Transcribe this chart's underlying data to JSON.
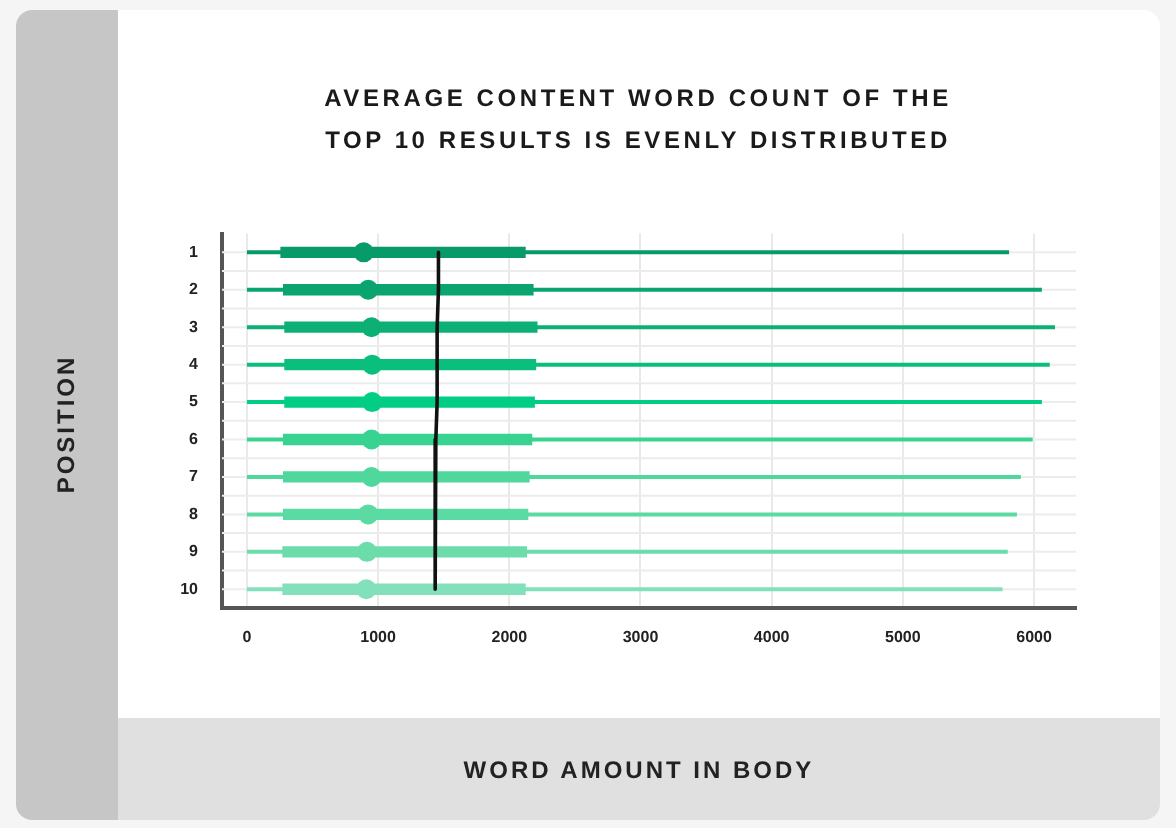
{
  "chart_data": {
    "type": "box",
    "orientation": "horizontal",
    "title": "AVERAGE CONTENT WORD COUNT OF THE TOP 10 RESULTS IS EVENLY DISTRIBUTED",
    "xlabel": "WORD AMOUNT IN BODY",
    "ylabel": "POSITION",
    "categories": [
      "1",
      "2",
      "3",
      "4",
      "5",
      "6",
      "7",
      "8",
      "9",
      "10"
    ],
    "xlim": [
      -190,
      6320
    ],
    "xticks": [
      0,
      1000,
      2000,
      3000,
      4000,
      5000,
      6000
    ],
    "grid": true,
    "series": [
      {
        "type": "box",
        "colors": [
          "#089b6a",
          "#0aa56f",
          "#0cb074",
          "#09bf7b",
          "#02cd84",
          "#38d391",
          "#4fd79c",
          "#5cdaa4",
          "#6cdcab",
          "#82e0bb"
        ],
        "boxes": [
          {
            "low": 0,
            "q1": 260,
            "median": 890,
            "q3": 2120,
            "high": 5810
          },
          {
            "low": 0,
            "q1": 280,
            "median": 925,
            "q3": 2180,
            "high": 6060
          },
          {
            "low": 0,
            "q1": 290,
            "median": 950,
            "q3": 2210,
            "high": 6160
          },
          {
            "low": 0,
            "q1": 290,
            "median": 955,
            "q3": 2200,
            "high": 6120
          },
          {
            "low": 0,
            "q1": 290,
            "median": 955,
            "q3": 2190,
            "high": 6060
          },
          {
            "low": 0,
            "q1": 280,
            "median": 950,
            "q3": 2170,
            "high": 5990
          },
          {
            "low": 0,
            "q1": 280,
            "median": 950,
            "q3": 2150,
            "high": 5900
          },
          {
            "low": 0,
            "q1": 280,
            "median": 925,
            "q3": 2140,
            "high": 5870
          },
          {
            "low": 0,
            "q1": 275,
            "median": 915,
            "q3": 2130,
            "high": 5800
          },
          {
            "low": 0,
            "q1": 275,
            "median": 910,
            "q3": 2120,
            "high": 5760
          }
        ]
      },
      {
        "type": "line",
        "color": "#111111",
        "values": [
          1460,
          1460,
          1450,
          1450,
          1450,
          1440,
          1440,
          1440,
          1430,
          1430
        ]
      }
    ]
  }
}
